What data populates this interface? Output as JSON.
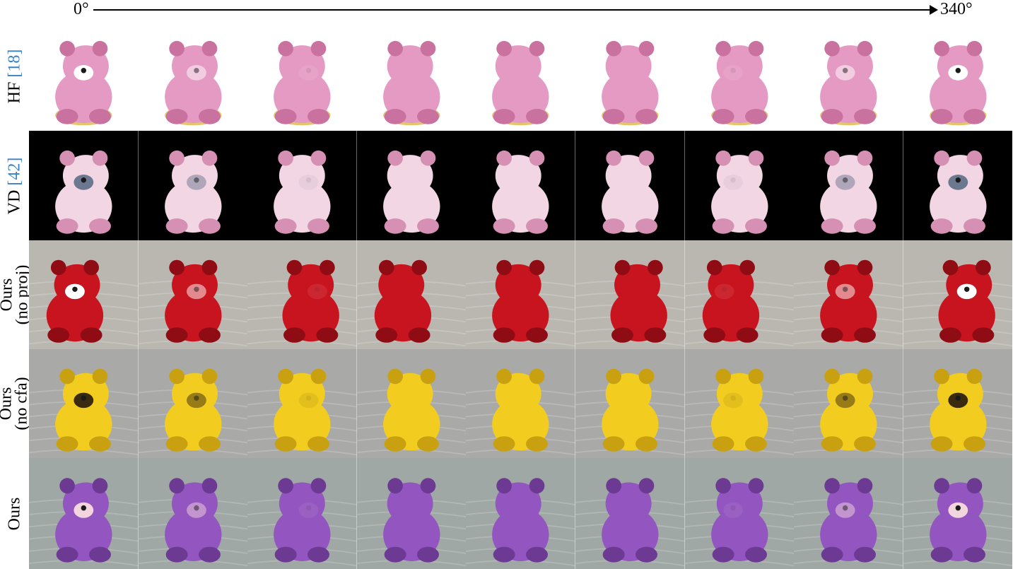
{
  "axis": {
    "start_label": "0°",
    "end_label": "340°"
  },
  "rows": [
    {
      "id": "hf",
      "label_main": "HF ",
      "label_cite": "[18]",
      "label_sub": "",
      "background": "#ffffff",
      "bear_color": "#e59ac4",
      "bear_shade": "#c9719f",
      "base_color": "#e3c66a",
      "eye_color": "#ffffff",
      "views": 9
    },
    {
      "id": "vd",
      "label_main": "VD ",
      "label_cite": "[42]",
      "label_sub": "",
      "background": "#000000",
      "bear_color": "#f3d6e3",
      "bear_shade": "#d690b4",
      "base_color": "",
      "eye_color": "#6c7890",
      "views": 9
    },
    {
      "id": "ours-no-proj",
      "label_main": "Ours",
      "label_cite": "",
      "label_sub": "(no proj)",
      "background": "#b9b7b0",
      "bear_color": "#c8141e",
      "bear_shade": "#8f0c14",
      "base_color": "",
      "eye_color": "#ffffff",
      "views": 9
    },
    {
      "id": "ours-no-cfa",
      "label_main": "Ours",
      "label_cite": "",
      "label_sub": "(no cfa)",
      "background": "#a9aaa8",
      "bear_color": "#f2cd1f",
      "bear_shade": "#c9a010",
      "base_color": "",
      "eye_color": "#3a2a10",
      "views": 9
    },
    {
      "id": "ours",
      "label_main": "Ours",
      "label_cite": "",
      "label_sub": "",
      "background": "#9fa8a4",
      "bear_color": "#9355c0",
      "bear_shade": "#6c3a93",
      "base_color": "",
      "eye_color": "#f3d6dd",
      "views": 9
    }
  ]
}
